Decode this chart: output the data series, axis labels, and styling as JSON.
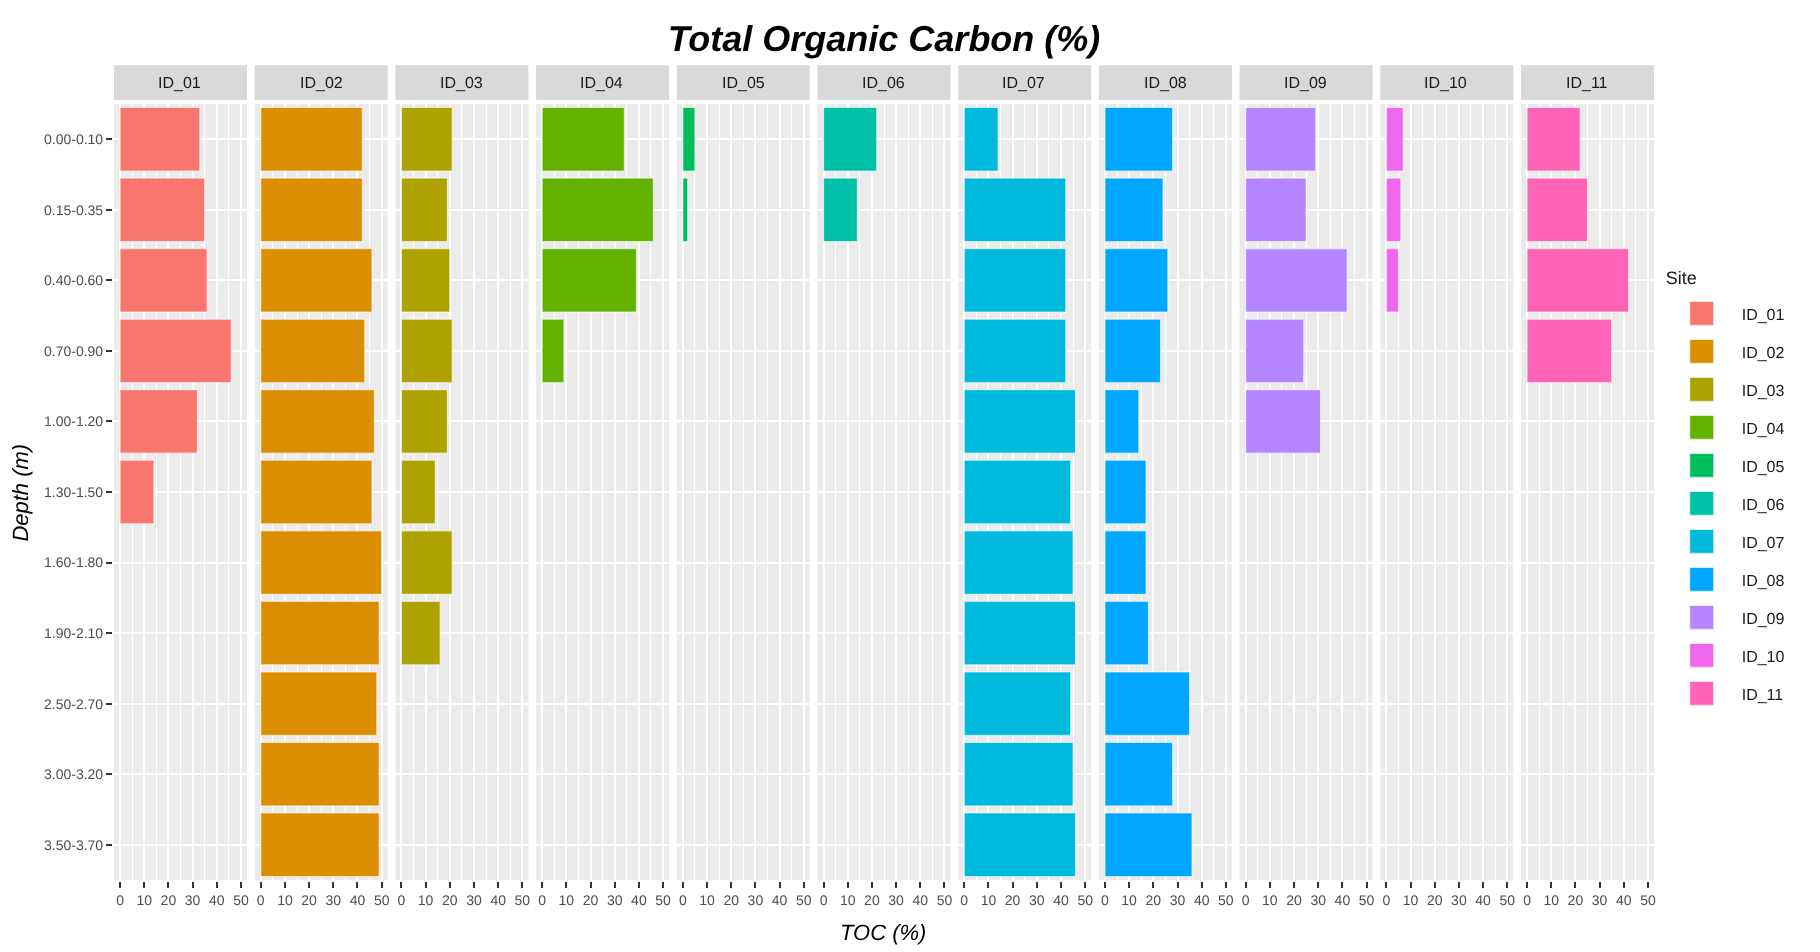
{
  "chart_data": [
    {
      "type": "bar",
      "orientation": "horizontal",
      "ylabel": "Depth (m)",
      "legend_title": "Site",
      "legend": "right",
      "grid": true,
      "categories": [
        "0.00-0.10",
        "0.15-0.35",
        "0.40-0.60",
        "0.70-0.90",
        "1.00-1.20",
        "1.30-1.50",
        "1.60-1.80",
        "1.90-2.10",
        "2.50-2.70",
        "3.00-3.20",
        "3.50-3.70"
      ],
      "xlim": [
        -2.5,
        52.5
      ],
      "xticks": [
        0,
        10,
        20,
        30,
        40,
        50
      ],
      "series": [
        {
          "name": "ID_01",
          "color": "#f8766d",
          "values": [
            33,
            35,
            36,
            46,
            32,
            14,
            null,
            null,
            null,
            null,
            null
          ]
        }
      ]
    },
    {
      "type": "bar",
      "orientation": "horizontal",
      "legend": "right",
      "grid": true,
      "tick_labels": "x",
      "xlim": [
        -2.5,
        52.5
      ],
      "xticks": [
        0,
        10,
        20,
        30,
        40,
        50
      ],
      "series": [
        {
          "name": "ID_02",
          "color": "#db8e00",
          "values": [
            42,
            42,
            46,
            43,
            47,
            46,
            50,
            49,
            48,
            49,
            49
          ]
        }
      ]
    },
    {
      "type": "bar",
      "orientation": "horizontal",
      "legend": "right",
      "grid": true,
      "tick_labels": "x",
      "xlim": [
        -2.5,
        52.5
      ],
      "xticks": [
        0,
        10,
        20,
        30,
        40,
        50
      ],
      "series": [
        {
          "name": "ID_03",
          "color": "#aea200",
          "values": [
            21,
            19,
            20,
            21,
            19,
            14,
            21,
            16,
            null,
            null,
            null
          ]
        }
      ]
    },
    {
      "type": "bar",
      "orientation": "horizontal",
      "legend": "right",
      "grid": true,
      "tick_labels": "x",
      "xlim": [
        -2.5,
        52.5
      ],
      "xticks": [
        0,
        10,
        20,
        30,
        40,
        50
      ],
      "series": [
        {
          "name": "ID_04",
          "color": "#64b200",
          "values": [
            34,
            46,
            39,
            9,
            null,
            null,
            null,
            null,
            null,
            null,
            null
          ]
        }
      ]
    },
    {
      "type": "bar",
      "orientation": "horizontal",
      "legend": "right",
      "grid": true,
      "tick_labels": "x",
      "xlim": [
        -2.5,
        52.5
      ],
      "xticks": [
        0,
        10,
        20,
        30,
        40,
        50
      ],
      "series": [
        {
          "name": "ID_05",
          "color": "#00bd5c",
          "values": [
            5,
            2,
            null,
            null,
            null,
            null,
            null,
            null,
            null,
            null,
            null
          ]
        }
      ]
    },
    {
      "type": "bar",
      "orientation": "horizontal",
      "legend": "right",
      "grid": true,
      "tick_labels": "x",
      "title": "Total Organic Carbon (%)",
      "xlabel": "TOC (%)",
      "xlim": [
        -2.5,
        52.5
      ],
      "xticks": [
        0,
        10,
        20,
        30,
        40,
        50
      ],
      "series": [
        {
          "name": "ID_06",
          "color": "#00c1a7",
          "values": [
            22,
            14,
            null,
            null,
            null,
            null,
            null,
            null,
            null,
            null,
            null
          ]
        }
      ]
    },
    {
      "type": "bar",
      "orientation": "horizontal",
      "legend": "right",
      "grid": true,
      "tick_labels": "x",
      "xlim": [
        -2.5,
        52.5
      ],
      "xticks": [
        0,
        10,
        20,
        30,
        40,
        50
      ],
      "series": [
        {
          "name": "ID_07",
          "color": "#00bade",
          "values": [
            14,
            42,
            42,
            42,
            46,
            44,
            45,
            46,
            44,
            45,
            46
          ]
        }
      ]
    },
    {
      "type": "bar",
      "orientation": "horizontal",
      "legend": "right",
      "grid": true,
      "tick_labels": "x",
      "xlim": [
        -2.5,
        52.5
      ],
      "xticks": [
        0,
        10,
        20,
        30,
        40,
        50
      ],
      "series": [
        {
          "name": "ID_08",
          "color": "#00a6ff",
          "values": [
            28,
            24,
            26,
            23,
            14,
            17,
            17,
            18,
            35,
            28,
            36
          ]
        }
      ]
    },
    {
      "type": "bar",
      "orientation": "horizontal",
      "legend": "right",
      "grid": true,
      "tick_labels": "x",
      "xlim": [
        -2.5,
        52.5
      ],
      "xticks": [
        0,
        10,
        20,
        30,
        40,
        50
      ],
      "series": [
        {
          "name": "ID_09",
          "color": "#b385ff",
          "values": [
            29,
            25,
            42,
            24,
            31,
            null,
            null,
            null,
            null,
            null,
            null
          ]
        }
      ]
    },
    {
      "type": "bar",
      "orientation": "horizontal",
      "legend": "right",
      "grid": true,
      "tick_labels": "x",
      "xlim": [
        -2.5,
        52.5
      ],
      "xticks": [
        0,
        10,
        20,
        30,
        40,
        50
      ],
      "series": [
        {
          "name": "ID_10",
          "color": "#ef67eb",
          "values": [
            7,
            6,
            5,
            null,
            null,
            null,
            null,
            null,
            null,
            null,
            null
          ]
        }
      ]
    },
    {
      "type": "bar",
      "orientation": "horizontal",
      "legend": "right",
      "grid": true,
      "tick_labels": "x",
      "xlim": [
        -2.5,
        52.5
      ],
      "xticks": [
        0,
        10,
        20,
        30,
        40,
        50
      ],
      "series": [
        {
          "name": "ID_11",
          "color": "#ff63b6",
          "values": [
            22,
            25,
            42,
            35,
            null,
            null,
            null,
            null,
            null,
            null,
            null
          ]
        }
      ]
    }
  ]
}
